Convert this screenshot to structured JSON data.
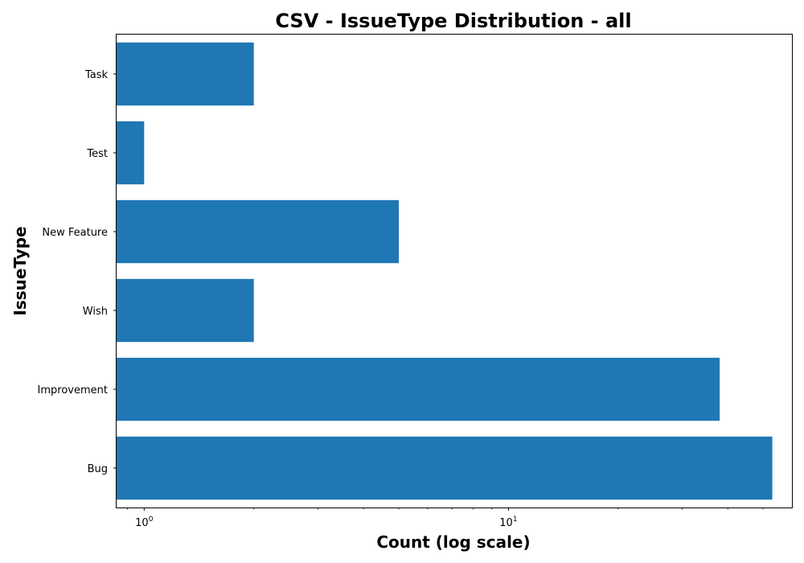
{
  "chart_data": {
    "type": "bar",
    "orientation": "horizontal",
    "title": "CSV - IssueType Distribution - all",
    "xlabel": "Count (log scale)",
    "ylabel": "IssueType",
    "x_scale": "log",
    "xlim": [
      0.84,
      60.0
    ],
    "categories": [
      "Task",
      "Test",
      "New Feature",
      "Wish",
      "Improvement",
      "Bug"
    ],
    "values": [
      2,
      1,
      5,
      2,
      38,
      53
    ],
    "x_major_ticks": [
      {
        "base": "10",
        "exp": "0",
        "value": 1
      },
      {
        "base": "10",
        "exp": "1",
        "value": 10
      }
    ],
    "bar_color": "#1f77b4",
    "grid": false,
    "legend": false
  }
}
